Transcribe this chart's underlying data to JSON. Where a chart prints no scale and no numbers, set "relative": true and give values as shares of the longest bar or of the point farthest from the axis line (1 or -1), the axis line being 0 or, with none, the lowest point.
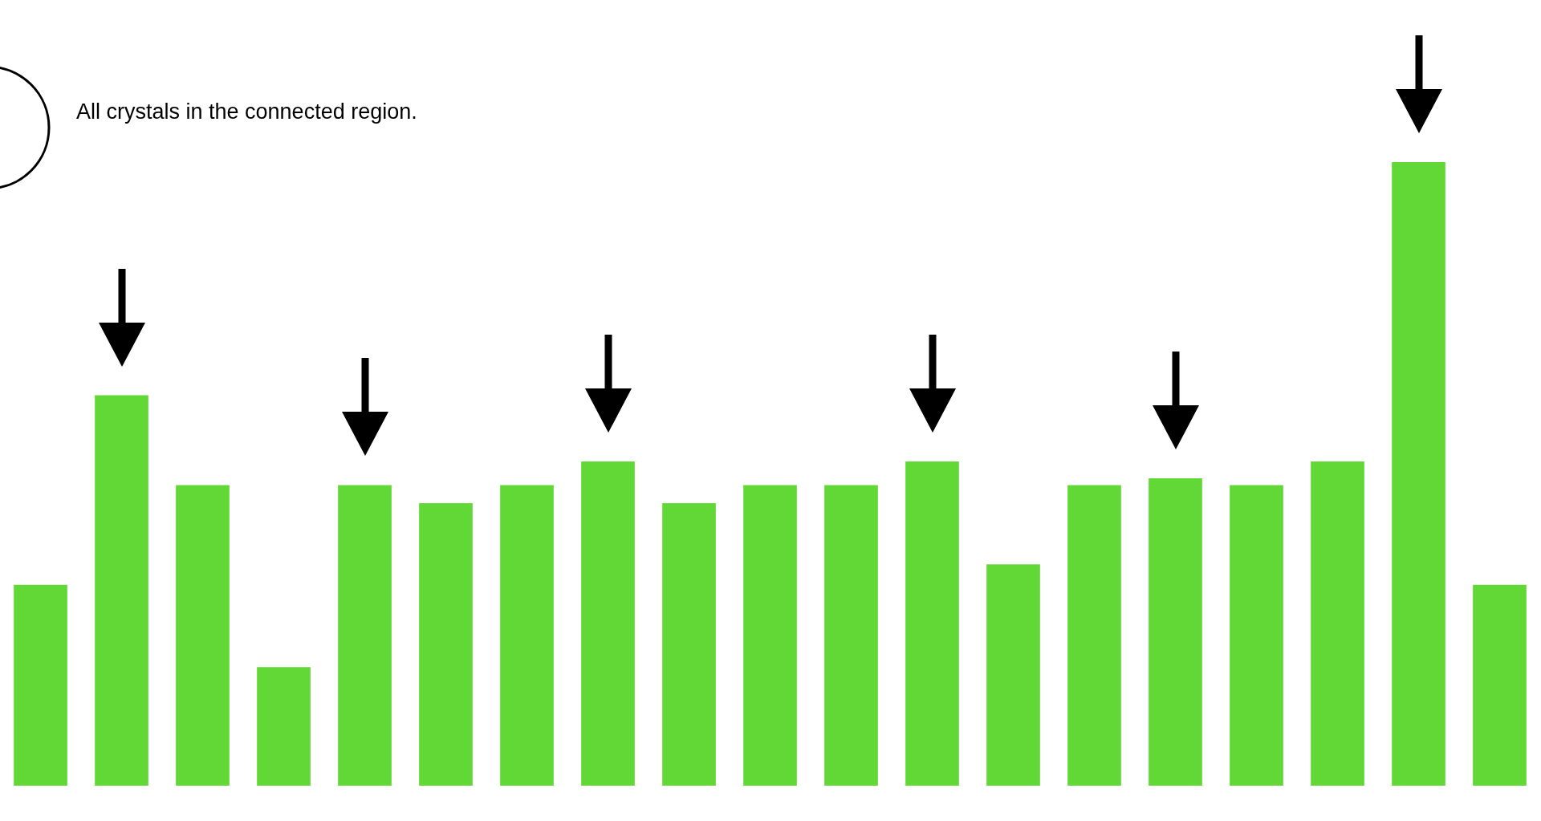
{
  "chart_data": {
    "type": "bar",
    "relative": true,
    "categories": [
      null,
      null,
      null,
      null,
      null,
      null,
      null,
      null,
      null,
      null,
      null,
      null,
      null,
      null,
      null,
      null,
      null,
      null,
      null
    ],
    "values": [
      0.322,
      0.626,
      0.482,
      0.19,
      0.482,
      0.453,
      0.482,
      0.52,
      0.453,
      0.482,
      0.482,
      0.52,
      0.355,
      0.482,
      0.493,
      0.482,
      0.52,
      1,
      0.322
    ],
    "color": "#62d836",
    "annotations": [
      "All crystals in the connected region."
    ]
  }
}
